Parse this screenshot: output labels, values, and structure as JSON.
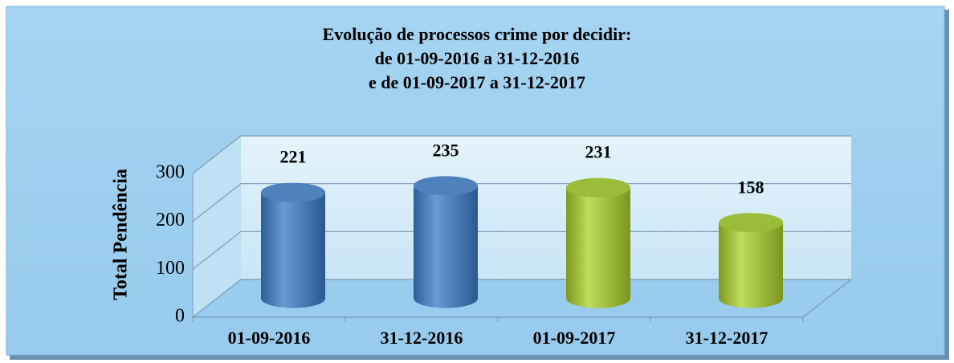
{
  "chart_data": {
    "type": "bar3d",
    "title": [
      "Evolução de processos crime por decidir:",
      "de 01-09-2016 a 31-12-2016",
      "e de 01-09-2017 a 31-12-2017"
    ],
    "y_label": "Total Pendência",
    "categories": [
      "01-09-2016",
      "31-12-2016",
      "01-09-2017",
      "31-12-2017"
    ],
    "values": [
      221,
      235,
      231,
      158
    ],
    "colors": [
      "#4f81bd",
      "#4f81bd",
      "#9bbb3a",
      "#9bbb3a"
    ],
    "ylim": [
      0,
      300
    ],
    "yticks": [
      0,
      100,
      200,
      300
    ],
    "grid": true
  }
}
